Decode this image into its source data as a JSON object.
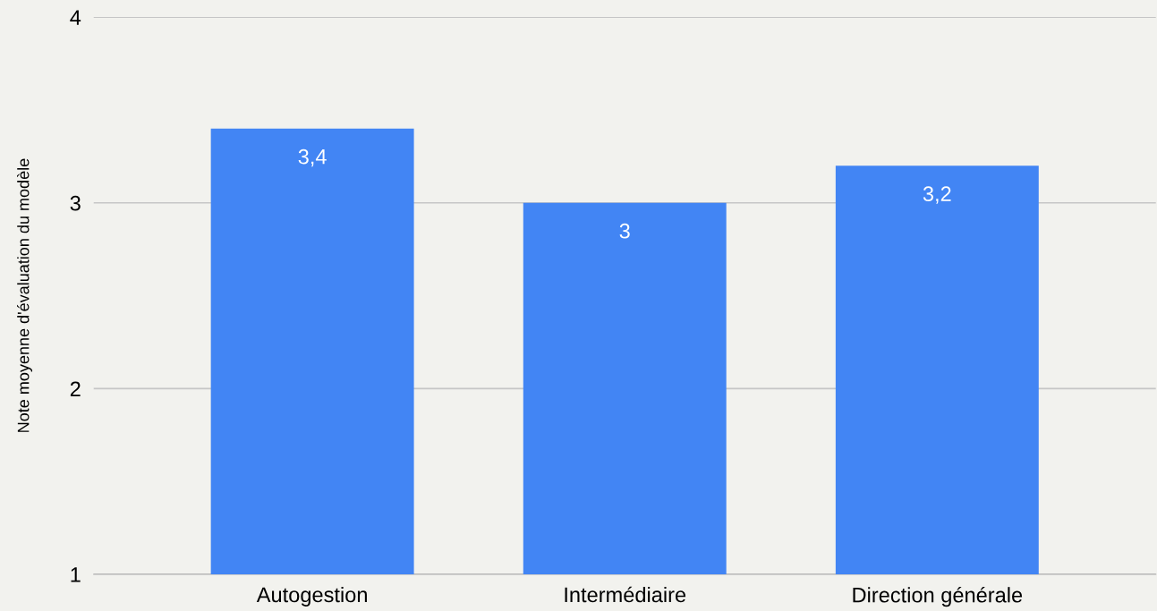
{
  "chart_data": {
    "type": "bar",
    "ylabel": "Note moyenne d'évaluation du modèle",
    "categories": [
      "Autogestion",
      "Intermédiaire",
      "Direction générale"
    ],
    "values": [
      3.4,
      3,
      3.2
    ],
    "value_labels": [
      "3,4",
      "3",
      "3,2"
    ],
    "color": "#4285f4",
    "ylim": [
      1,
      4
    ],
    "yticks": [
      1,
      2,
      3,
      4
    ],
    "grid": "y",
    "legend": false
  }
}
